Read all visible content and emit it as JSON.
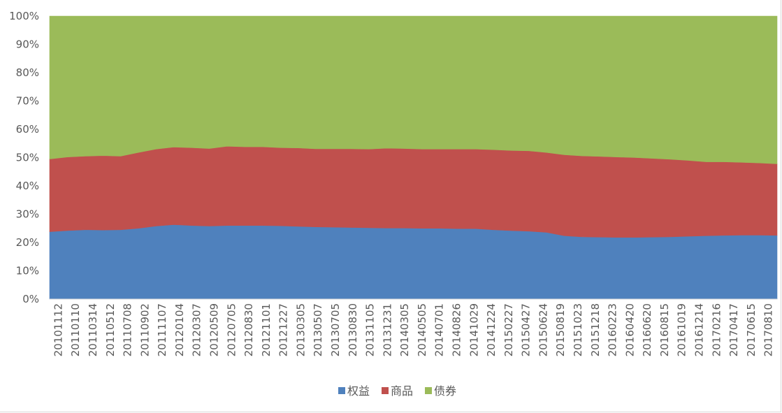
{
  "chart_data": {
    "type": "area",
    "stacked": true,
    "normalized_percent": true,
    "title": "",
    "xlabel": "",
    "ylabel": "",
    "ylim": [
      0,
      100
    ],
    "yticks": [
      "0%",
      "10%",
      "20%",
      "30%",
      "40%",
      "50%",
      "60%",
      "70%",
      "80%",
      "90%",
      "100%"
    ],
    "grid": false,
    "legend_position": "bottom",
    "x": [
      "20101112",
      "20110110",
      "20110314",
      "20110512",
      "20110708",
      "20110902",
      "20111107",
      "20120104",
      "20120307",
      "20120509",
      "20120705",
      "20120830",
      "20121101",
      "20121227",
      "20130305",
      "20130507",
      "20130705",
      "20130830",
      "20131105",
      "20131231",
      "20140305",
      "20140505",
      "20140701",
      "20140826",
      "20141029",
      "20141224",
      "20150227",
      "20150427",
      "20150624",
      "20150819",
      "20151023",
      "20151218",
      "20160223",
      "20160420",
      "20160620",
      "20160815",
      "20161019",
      "20161214",
      "20170216",
      "20170417",
      "20170615",
      "20170810"
    ],
    "series": [
      {
        "name": "权益",
        "color": "#4f81bd",
        "values": [
          23.8,
          24.2,
          24.5,
          24.4,
          24.5,
          25.0,
          25.8,
          26.3,
          26.0,
          25.8,
          26.0,
          26.0,
          26.0,
          25.9,
          25.7,
          25.5,
          25.4,
          25.3,
          25.2,
          25.1,
          25.1,
          25.0,
          25.0,
          24.9,
          24.9,
          24.5,
          24.2,
          24.0,
          23.6,
          22.4,
          22.0,
          21.9,
          21.8,
          21.8,
          21.9,
          22.0,
          22.2,
          22.4,
          22.5,
          22.6,
          22.6,
          22.5
        ]
      },
      {
        "name": "商品",
        "color": "#c0504d",
        "values": [
          25.7,
          26.0,
          26.0,
          26.3,
          26.0,
          26.8,
          27.2,
          27.4,
          27.5,
          27.4,
          28.0,
          27.8,
          27.8,
          27.6,
          27.7,
          27.6,
          27.7,
          27.8,
          27.8,
          28.2,
          28.1,
          28.0,
          28.0,
          28.1,
          28.1,
          28.3,
          28.3,
          28.4,
          28.2,
          28.6,
          28.6,
          28.5,
          28.4,
          28.2,
          27.8,
          27.4,
          26.8,
          26.1,
          26.0,
          25.7,
          25.5,
          25.3
        ]
      },
      {
        "name": "债券",
        "color": "#9bbb59",
        "values": [
          50.5,
          49.8,
          49.5,
          49.3,
          49.5,
          48.2,
          47.0,
          46.3,
          46.5,
          46.8,
          46.0,
          46.2,
          46.2,
          46.5,
          46.6,
          46.9,
          46.9,
          46.9,
          47.0,
          46.7,
          46.8,
          47.0,
          47.0,
          47.0,
          47.0,
          47.2,
          47.5,
          47.6,
          48.2,
          49.0,
          49.4,
          49.6,
          49.8,
          50.0,
          50.3,
          50.6,
          51.0,
          51.5,
          51.5,
          51.7,
          51.9,
          52.2
        ]
      }
    ]
  }
}
